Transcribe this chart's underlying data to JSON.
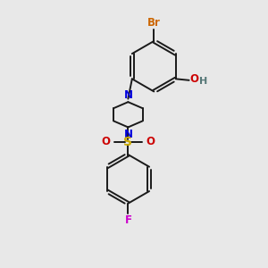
{
  "bg_color": "#e8e8e8",
  "bond_color": "#1a1a1a",
  "bond_width": 1.4,
  "atoms": {
    "Br": {
      "color": "#cc6600"
    },
    "O": {
      "color": "#cc0000"
    },
    "H": {
      "color": "#557777"
    },
    "N": {
      "color": "#0000dd"
    },
    "S": {
      "color": "#ccaa00"
    },
    "F": {
      "color": "#cc00cc"
    }
  }
}
